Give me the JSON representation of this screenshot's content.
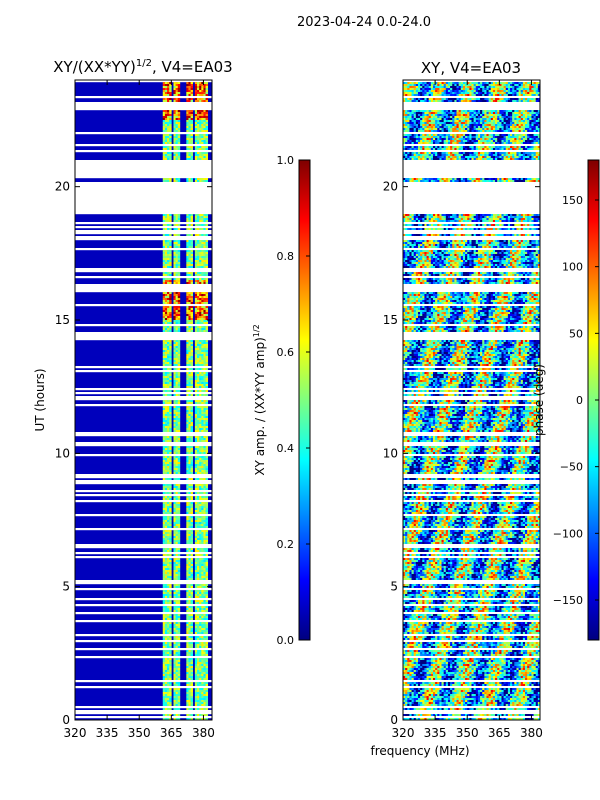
{
  "suptitle": "2023-04-24 0.0-24.0",
  "xlabel": "frequency (MHz)",
  "colormap_stops": [
    "#00007f",
    "#0000ff",
    "#007fff",
    "#00ffff",
    "#7fff7f",
    "#ffff00",
    "#ff7f00",
    "#ff0000",
    "#7f0000"
  ],
  "chart_data": [
    {
      "type": "heatmap",
      "title_prefix": "XY/(XX*YY)",
      "title_sup": "1/2",
      "title_suffix": ", V4=EA03",
      "ylabel": "UT (hours)",
      "x_ticks": [
        320,
        335,
        350,
        365,
        380
      ],
      "x_range": [
        320,
        384
      ],
      "y_ticks": [
        0,
        5,
        10,
        15,
        20
      ],
      "y_range": [
        0,
        24
      ],
      "rfi_channels_mhz": [
        [
          361.5,
          365.0
        ],
        [
          366.0,
          369.0
        ],
        [
          372.0,
          374.5
        ],
        [
          376.0,
          379.0
        ],
        [
          379.5,
          381.5
        ]
      ],
      "colorbar": {
        "label_main": "XY amp. / (XX*YY amp)",
        "label_sup": "1/2",
        "range": [
          0.0,
          1.0
        ],
        "ticks": [
          0.0,
          0.2,
          0.4,
          0.6,
          0.8,
          1.0
        ],
        "tick_labels": [
          "0.0",
          "0.2",
          "0.4",
          "0.6",
          "0.8",
          "1.0"
        ]
      }
    },
    {
      "type": "heatmap",
      "title": "XY, V4=EA03",
      "x_ticks": [
        320,
        335,
        350,
        365,
        380
      ],
      "x_range": [
        320,
        384
      ],
      "y_ticks": [
        0,
        5,
        10,
        15,
        20
      ],
      "y_range": [
        0,
        24
      ],
      "colorbar": {
        "label": "phase (deg)",
        "range": [
          -180,
          180
        ],
        "ticks": [
          -150,
          -100,
          -50,
          0,
          50,
          100,
          150
        ],
        "tick_labels": [
          "−150",
          "−100",
          "−50",
          "0",
          "50",
          "100",
          "150"
        ]
      }
    }
  ],
  "flagged_intervals_hours": [
    [
      19.0,
      20.2
    ],
    [
      20.3,
      21.0
    ]
  ]
}
